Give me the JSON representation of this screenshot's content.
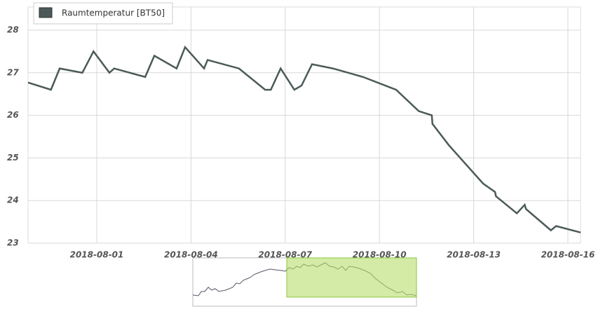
{
  "chart_data": {
    "type": "line",
    "series": [
      {
        "name": "Raumtemperatur [BT50]",
        "color": "#4b5a58",
        "x": [
          "2018-07-29T19:30",
          "2018-07-30T13:00",
          "2018-07-30T19:40",
          "2018-07-31T13:00",
          "2018-07-31T21:30",
          "2018-08-01T09:40",
          "2018-08-01T13:20",
          "2018-08-02T13:00",
          "2018-08-02T20:00",
          "2018-08-03T13:00",
          "2018-08-03T19:30",
          "2018-08-04T10:00",
          "2018-08-04T12:40",
          "2018-08-05T12:40",
          "2018-08-06T08:40",
          "2018-08-06T13:00",
          "2018-08-06T20:30",
          "2018-08-07T07:00",
          "2018-08-07T12:30",
          "2018-08-07T20:30",
          "2018-08-08T12:30",
          "2018-08-09T11:30",
          "2018-08-10T12:45",
          "2018-08-11T06:00",
          "2018-08-11T16:00",
          "2018-08-11T16:30",
          "2018-08-12T05:00",
          "2018-08-13T07:10",
          "2018-08-13T16:20",
          "2018-08-13T17:00",
          "2018-08-14T09:00",
          "2018-08-14T15:00",
          "2018-08-14T16:00",
          "2018-08-15T11:00",
          "2018-08-15T15:00",
          "2018-08-16T09:40"
        ],
        "values": [
          26.77,
          26.6,
          27.1,
          27.0,
          27.5,
          27.0,
          27.1,
          26.9,
          27.4,
          27.1,
          27.6,
          27.1,
          27.3,
          27.1,
          26.6,
          26.6,
          27.1,
          26.6,
          26.7,
          27.2,
          27.1,
          26.9,
          26.6,
          26.1,
          26.0,
          25.8,
          25.3,
          24.4,
          24.2,
          24.1,
          23.7,
          23.9,
          23.8,
          23.3,
          23.4,
          23.25
        ]
      }
    ],
    "xlim": [
      "2018-07-29T19:30",
      "2018-08-16T09:40"
    ],
    "xticks": [
      "2018-08-01",
      "2018-08-04",
      "2018-08-07",
      "2018-08-10",
      "2018-08-13",
      "2018-08-16"
    ],
    "ylim": [
      23,
      28
    ],
    "yticks": [
      23,
      24,
      25,
      26,
      27,
      28
    ],
    "grid": true,
    "legend": "top-left"
  }
}
